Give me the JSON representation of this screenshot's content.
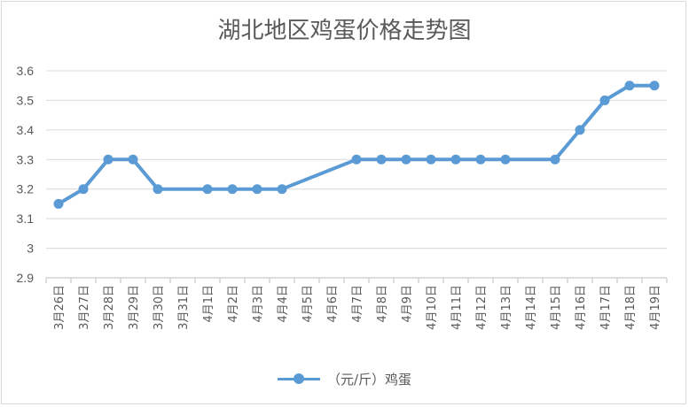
{
  "chart_data": {
    "type": "line",
    "title": "湖北地区鸡蛋价格走势图",
    "categories": [
      "3月26日",
      "3月27日",
      "3月28日",
      "3月29日",
      "3月30日",
      "3月31日",
      "4月1日",
      "4月2日",
      "4月3日",
      "4月4日",
      "4月5日",
      "4月6日",
      "4月7日",
      "4月8日",
      "4月9日",
      "4月10日",
      "4月11日",
      "4月12日",
      "4月13日",
      "4月14日",
      "4月15日",
      "4月16日",
      "4月17日",
      "4月18日",
      "4月19日"
    ],
    "series": [
      {
        "name": "（元/斤）鸡蛋",
        "values": [
          3.15,
          3.2,
          3.3,
          3.3,
          3.2,
          null,
          3.2,
          3.2,
          3.2,
          3.2,
          null,
          null,
          3.3,
          3.3,
          3.3,
          3.3,
          3.3,
          3.3,
          3.3,
          null,
          3.3,
          3.4,
          3.5,
          3.55,
          3.55
        ]
      }
    ],
    "yticks": [
      "2.9",
      "3",
      "3.1",
      "3.2",
      "3.3",
      "3.4",
      "3.5",
      "3.6"
    ],
    "ylim": [
      2.9,
      3.6
    ],
    "grid": true,
    "legend_position": "bottom",
    "color": "#5b9bd5"
  }
}
